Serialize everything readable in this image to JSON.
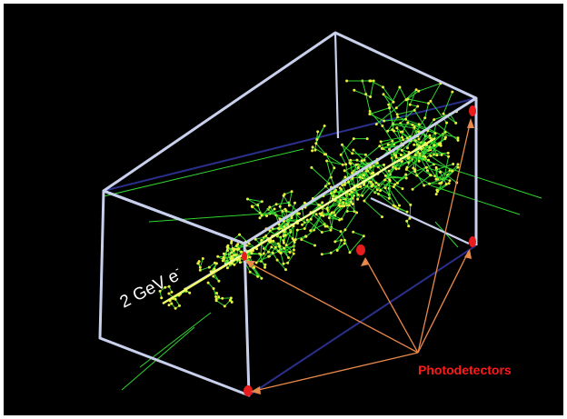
{
  "figure": {
    "beam_label": "2 GeV e",
    "beam_label_superscript": "-",
    "detector_label": "Photodetectors"
  },
  "colors": {
    "background": "#000000",
    "box_edge": "#c8d0ec",
    "box_back_edge": "#2a2f8c",
    "track": "#2fd42f",
    "hit": "#e8f040",
    "core": "#f6ff6a",
    "detector": "#e81c1c",
    "pointer": "#e8884a",
    "detector_label": "#ff1a1a"
  }
}
